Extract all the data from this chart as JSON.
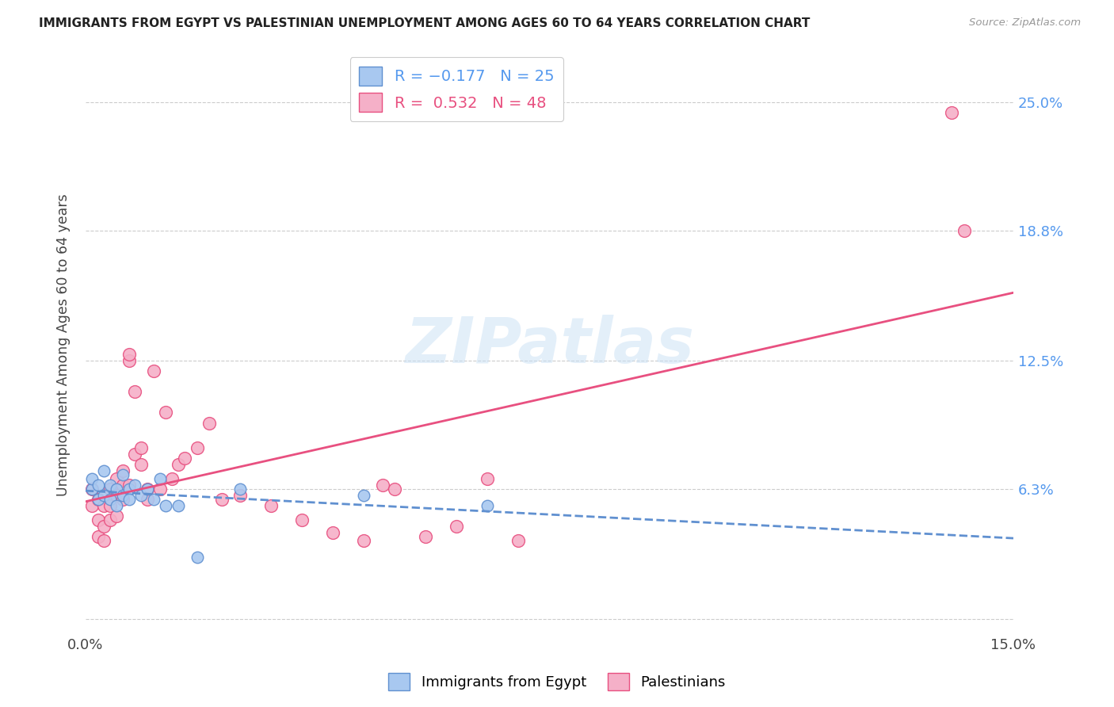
{
  "title": "IMMIGRANTS FROM EGYPT VS PALESTINIAN UNEMPLOYMENT AMONG AGES 60 TO 64 YEARS CORRELATION CHART",
  "source": "Source: ZipAtlas.com",
  "ylabel": "Unemployment Among Ages 60 to 64 years",
  "xlim": [
    0.0,
    0.15
  ],
  "ylim": [
    -0.005,
    0.27
  ],
  "yticks": [
    0.0,
    0.063,
    0.125,
    0.188,
    0.25
  ],
  "ytick_labels": [
    "",
    "6.3%",
    "12.5%",
    "18.8%",
    "25.0%"
  ],
  "xticks": [
    0.0,
    0.05,
    0.1,
    0.15
  ],
  "xtick_labels": [
    "0.0%",
    "",
    "",
    "15.0%"
  ],
  "legend_label1": "Immigrants from Egypt",
  "legend_label2": "Palestinians",
  "R1": -0.177,
  "N1": 25,
  "R2": 0.532,
  "N2": 48,
  "color_egypt": "#a8c8f0",
  "color_pal": "#f5b0c8",
  "color_line_egypt": "#6090d0",
  "color_line_pal": "#e85080",
  "watermark": "ZIPatlas",
  "egypt_x": [
    0.001,
    0.001,
    0.002,
    0.002,
    0.003,
    0.003,
    0.004,
    0.004,
    0.005,
    0.005,
    0.006,
    0.006,
    0.007,
    0.007,
    0.008,
    0.009,
    0.01,
    0.011,
    0.012,
    0.013,
    0.015,
    0.018,
    0.025,
    0.045,
    0.065
  ],
  "egypt_y": [
    0.063,
    0.068,
    0.058,
    0.065,
    0.06,
    0.072,
    0.058,
    0.065,
    0.063,
    0.055,
    0.06,
    0.07,
    0.063,
    0.058,
    0.065,
    0.06,
    0.063,
    0.058,
    0.068,
    0.055,
    0.055,
    0.03,
    0.063,
    0.06,
    0.055
  ],
  "pal_x": [
    0.001,
    0.001,
    0.002,
    0.002,
    0.002,
    0.003,
    0.003,
    0.003,
    0.004,
    0.004,
    0.004,
    0.005,
    0.005,
    0.005,
    0.006,
    0.006,
    0.006,
    0.007,
    0.007,
    0.007,
    0.008,
    0.008,
    0.009,
    0.009,
    0.01,
    0.01,
    0.011,
    0.012,
    0.013,
    0.014,
    0.015,
    0.016,
    0.018,
    0.02,
    0.022,
    0.025,
    0.03,
    0.035,
    0.04,
    0.045,
    0.048,
    0.05,
    0.055,
    0.06,
    0.065,
    0.07,
    0.14,
    0.142
  ],
  "pal_y": [
    0.063,
    0.055,
    0.048,
    0.058,
    0.04,
    0.055,
    0.045,
    0.038,
    0.055,
    0.063,
    0.048,
    0.06,
    0.068,
    0.05,
    0.065,
    0.072,
    0.058,
    0.125,
    0.128,
    0.065,
    0.08,
    0.11,
    0.075,
    0.083,
    0.063,
    0.058,
    0.12,
    0.063,
    0.1,
    0.068,
    0.075,
    0.078,
    0.083,
    0.095,
    0.058,
    0.06,
    0.055,
    0.048,
    0.042,
    0.038,
    0.065,
    0.063,
    0.04,
    0.045,
    0.068,
    0.038,
    0.245,
    0.188
  ]
}
